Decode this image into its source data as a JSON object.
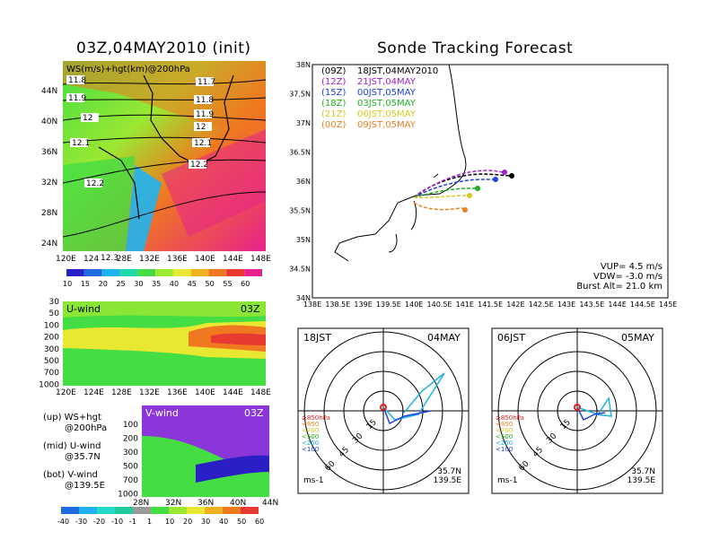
{
  "left": {
    "title": "03Z,04MAY2010 (init)",
    "map": {
      "label": "WS(m/s)+hgt(km)@200hPa",
      "lat_ticks": [
        "44N",
        "40N",
        "36N",
        "32N",
        "28N",
        "24N"
      ],
      "lon_ticks": [
        "120E",
        "124E",
        "128E",
        "132E",
        "136E",
        "140E",
        "144E",
        "148E"
      ],
      "contour_labels": [
        "11.8",
        "11.9",
        "12",
        "12.1",
        "12.2",
        "12.3",
        "11.7",
        "11.8",
        "11.9",
        "12",
        "12.1",
        "12.2"
      ],
      "colorbar": [
        "10",
        "15",
        "20",
        "25",
        "30",
        "35",
        "40",
        "45",
        "50",
        "55",
        "60"
      ],
      "colors": [
        "#2a1fc4",
        "#1f6be0",
        "#1fb4f0",
        "#22d8a8",
        "#44dd44",
        "#9be832",
        "#e8e832",
        "#f0b020",
        "#f07820",
        "#e83a30",
        "#e8228c"
      ]
    },
    "uwind": {
      "label": "U-wind",
      "time": "03Z",
      "p_ticks": [
        "30",
        "50",
        "100",
        "200",
        "300",
        "500",
        "700",
        "1000"
      ],
      "lon_ticks": [
        "120E",
        "124E",
        "128E",
        "132E",
        "136E",
        "140E",
        "144E",
        "148E"
      ]
    },
    "vwind": {
      "label": "V-wind",
      "time": "03Z",
      "p_ticks": [
        "100",
        "200",
        "300",
        "500",
        "700",
        "1000"
      ],
      "lat_ticks": [
        "28N",
        "32N",
        "36N",
        "40N",
        "44N"
      ]
    },
    "legend_notes": [
      {
        "a": "(up) WS+hgt",
        "b": "@200hPa"
      },
      {
        "a": "(mid) U-wind",
        "b": "@35.7N"
      },
      {
        "a": "(bot) V-wind",
        "b": "@139.5E"
      }
    ],
    "bottom_colorbar": [
      "-40",
      "-30",
      "-20",
      "-10",
      "-1",
      "1",
      "10",
      "20",
      "30",
      "40",
      "50",
      "60"
    ],
    "bottom_colors": [
      "#1f6be0",
      "#1fb4f0",
      "#22d8c8",
      "#22c8a0",
      "#999999",
      "#44dd44",
      "#9be832",
      "#e8e832",
      "#f0b020",
      "#f07820",
      "#e83a30"
    ]
  },
  "tracking": {
    "title": "Sonde Tracking Forecast",
    "lat_ticks": [
      "38N",
      "37.5N",
      "37N",
      "36.5N",
      "36N",
      "35.5N",
      "35N",
      "34.5N",
      "34N"
    ],
    "lon_ticks": [
      "138E",
      "138.5E",
      "139E",
      "139.5E",
      "140E",
      "140.5E",
      "141E",
      "141.5E",
      "142E",
      "142.5E",
      "143E",
      "143.5E",
      "144E",
      "144.5E",
      "145E"
    ],
    "legend": [
      {
        "z": "(09Z)",
        "t": "18JST,04MAY2010",
        "color": "#000000"
      },
      {
        "z": "(12Z)",
        "t": "21JST,04MAY",
        "color": "#a020c8"
      },
      {
        "z": "(15Z)",
        "t": "00JST,05MAY",
        "color": "#2040e0"
      },
      {
        "z": "(18Z)",
        "t": "03JST,05MAY",
        "color": "#20b020"
      },
      {
        "z": "(21Z)",
        "t": "06JST,05MAY",
        "color": "#d8c820"
      },
      {
        "z": "(00Z)",
        "t": "09JST,05MAY",
        "color": "#e88020"
      }
    ],
    "params": [
      "VUP= 4.5 m/s",
      "VDW= -3.0 m/s",
      "Burst Alt= 21.0 km"
    ]
  },
  "hodo1": {
    "time": "18JST",
    "date": "04MAY",
    "loc": "35.7N",
    "lon": "139.5E",
    "unit": "ms-1",
    "rings": [
      "15",
      "30",
      "45",
      "60"
    ]
  },
  "hodo2": {
    "time": "06JST",
    "date": "05MAY",
    "loc": "35.7N",
    "lon": "139.5E",
    "unit": "ms-1",
    "rings": [
      "15",
      "30",
      "45",
      "60"
    ]
  },
  "hodo_legend": [
    {
      "t": "≥850hPa",
      "c": "#e02020"
    },
    {
      "t": "<850",
      "c": "#f08020"
    },
    {
      "t": "<700",
      "c": "#d8c820"
    },
    {
      "t": "<500",
      "c": "#20b020"
    },
    {
      "t": "<250",
      "c": "#20b0e0"
    },
    {
      "t": "<100",
      "c": "#2040e0"
    }
  ]
}
